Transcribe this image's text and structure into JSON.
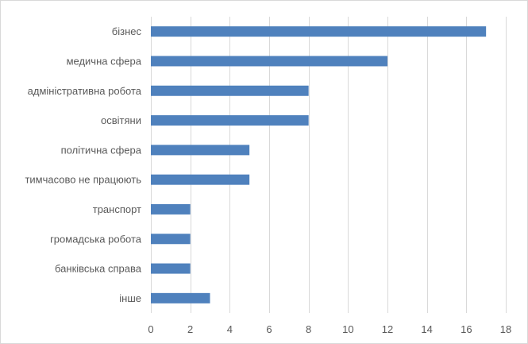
{
  "chart_data": {
    "type": "bar",
    "orientation": "horizontal",
    "title": "",
    "xlabel": "",
    "ylabel": "",
    "categories": [
      "бізнес",
      "медична сфера",
      "адміністративна робота",
      "освітяни",
      "політична сфера",
      "тимчасово не працюють",
      "транспорт",
      "громадська робота",
      "банківська справа",
      "інше"
    ],
    "values": [
      17,
      12,
      8,
      8,
      5,
      5,
      2,
      2,
      2,
      3
    ],
    "xlim": [
      0,
      18
    ],
    "xticks": [
      0,
      2,
      4,
      6,
      8,
      10,
      12,
      14,
      16,
      18
    ],
    "xtick_labels": [
      "0",
      "2",
      "4",
      "6",
      "8",
      "10",
      "12",
      "14",
      "16",
      "18"
    ],
    "grid": "vertical",
    "legend": "none",
    "colors": {
      "bar": "#4f81bd",
      "grid": "#d9d9d9",
      "text": "#595959"
    }
  }
}
